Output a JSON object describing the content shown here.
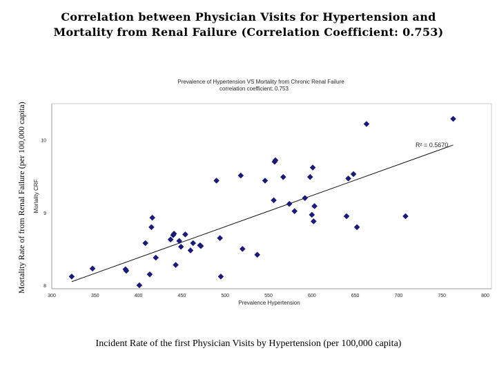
{
  "slide": {
    "title_line1": "Correlation between Physician Visits for Hypertension and",
    "title_line2": "Mortality from Renal Failure (Correlation Coefficient: 0.753)",
    "y_label": "Mortality Rate of from Renal Failure (per 100,000 capita)",
    "x_label": "Incident Rate of the first Physician Visits by Hypertension (per 100,000 capita)"
  },
  "chart_data": {
    "type": "scatter",
    "title": "Prevalence of Hypertension VS Mortality from Chronic Renal Failure",
    "subtitle": "correlation coefficient: 0.753",
    "xlabel": "Prevalence Hypertension",
    "ylabel": "Mortality CRF",
    "xlim": [
      300,
      800
    ],
    "ylim": [
      8,
      10.5
    ],
    "x_ticks": [
      300,
      350,
      400,
      450,
      500,
      550,
      600,
      650,
      700,
      750,
      800
    ],
    "y_ticks": [
      8,
      9,
      10
    ],
    "y_tick_labels": [
      "8",
      "9",
      "10"
    ],
    "r_squared_label": "R² = 0.5670",
    "marker_color": "#1a1a80",
    "trendline": {
      "x": [
        323,
        763
      ],
      "y": [
        8.05,
        9.93
      ]
    },
    "points": [
      {
        "x": 323,
        "y": 8.12
      },
      {
        "x": 347,
        "y": 8.23
      },
      {
        "x": 385,
        "y": 8.22
      },
      {
        "x": 386,
        "y": 8.2
      },
      {
        "x": 401,
        "y": 8.0
      },
      {
        "x": 408,
        "y": 8.58
      },
      {
        "x": 413,
        "y": 8.15
      },
      {
        "x": 415,
        "y": 8.8
      },
      {
        "x": 416,
        "y": 8.93
      },
      {
        "x": 420,
        "y": 8.38
      },
      {
        "x": 437,
        "y": 8.63
      },
      {
        "x": 440,
        "y": 8.69
      },
      {
        "x": 441,
        "y": 8.71
      },
      {
        "x": 443,
        "y": 8.28
      },
      {
        "x": 447,
        "y": 8.61
      },
      {
        "x": 449,
        "y": 8.53
      },
      {
        "x": 454,
        "y": 8.7
      },
      {
        "x": 460,
        "y": 8.48
      },
      {
        "x": 463,
        "y": 8.58
      },
      {
        "x": 471,
        "y": 8.55
      },
      {
        "x": 472,
        "y": 8.54
      },
      {
        "x": 490,
        "y": 9.44
      },
      {
        "x": 494,
        "y": 8.65
      },
      {
        "x": 495,
        "y": 8.12
      },
      {
        "x": 518,
        "y": 9.51
      },
      {
        "x": 520,
        "y": 8.5
      },
      {
        "x": 537,
        "y": 8.42
      },
      {
        "x": 546,
        "y": 9.44
      },
      {
        "x": 556,
        "y": 9.17
      },
      {
        "x": 557,
        "y": 9.7
      },
      {
        "x": 558,
        "y": 9.72
      },
      {
        "x": 567,
        "y": 9.49
      },
      {
        "x": 574,
        "y": 9.12
      },
      {
        "x": 580,
        "y": 9.02
      },
      {
        "x": 592,
        "y": 9.2
      },
      {
        "x": 598,
        "y": 9.49
      },
      {
        "x": 600,
        "y": 8.97
      },
      {
        "x": 601,
        "y": 9.62
      },
      {
        "x": 602,
        "y": 8.88
      },
      {
        "x": 603,
        "y": 9.09
      },
      {
        "x": 640,
        "y": 8.95
      },
      {
        "x": 642,
        "y": 9.47
      },
      {
        "x": 648,
        "y": 9.53
      },
      {
        "x": 652,
        "y": 8.8
      },
      {
        "x": 663,
        "y": 10.22
      },
      {
        "x": 708,
        "y": 8.95
      },
      {
        "x": 763,
        "y": 10.29
      }
    ]
  }
}
